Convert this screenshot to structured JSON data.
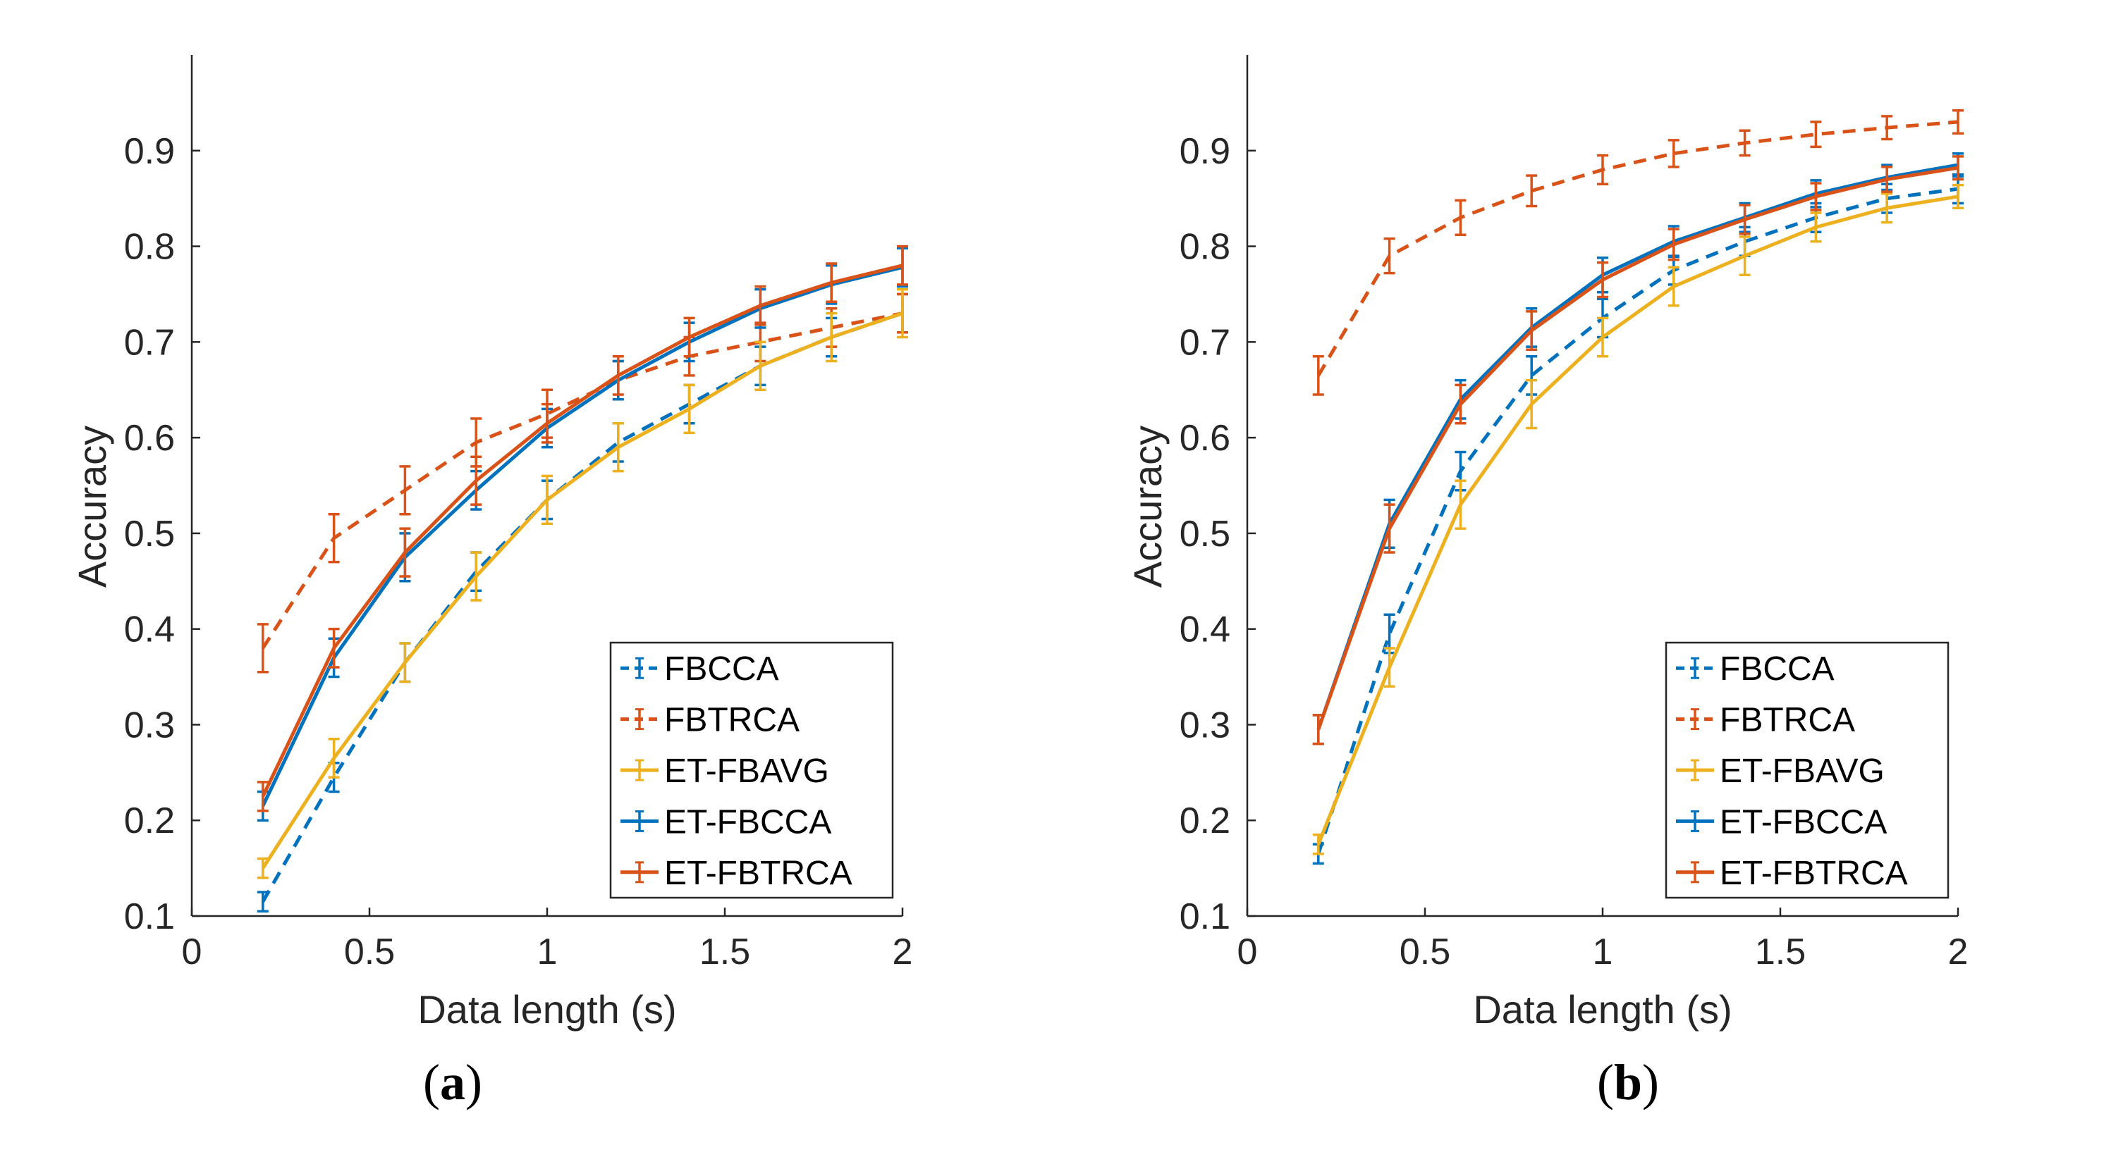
{
  "chart_data": [
    {
      "type": "line",
      "panel_label": "a",
      "xlabel": "Data length (s)",
      "ylabel": "Accuracy",
      "xlim": [
        0,
        2
      ],
      "ylim": [
        0.1,
        1.0
      ],
      "xticks": [
        0,
        0.5,
        1,
        1.5,
        2
      ],
      "xtick_labels": [
        "0",
        "0.5",
        "1",
        "1.5",
        "2"
      ],
      "yticks": [
        0.1,
        0.2,
        0.3,
        0.4,
        0.5,
        0.6,
        0.7,
        0.8,
        0.9
      ],
      "ytick_labels": [
        "0.1",
        "0.2",
        "0.3",
        "0.4",
        "0.5",
        "0.6",
        "0.7",
        "0.8",
        "0.9"
      ],
      "legend_position": "bottom-right",
      "x": [
        0.2,
        0.4,
        0.6,
        0.8,
        1.0,
        1.2,
        1.4,
        1.6,
        1.8,
        2.0
      ],
      "series": [
        {
          "name": "FBCCA",
          "color": "#0072BD",
          "style": "dashed",
          "values": [
            0.115,
            0.245,
            0.365,
            0.46,
            0.535,
            0.595,
            0.635,
            0.675,
            0.705,
            0.73
          ],
          "errors": [
            0.01,
            0.015,
            0.02,
            0.02,
            0.02,
            0.02,
            0.02,
            0.02,
            0.02,
            0.02
          ]
        },
        {
          "name": "FBTRCA",
          "color": "#D95319",
          "style": "dashed",
          "values": [
            0.38,
            0.495,
            0.545,
            0.595,
            0.625,
            0.66,
            0.685,
            0.7,
            0.715,
            0.73
          ],
          "errors": [
            0.025,
            0.025,
            0.025,
            0.025,
            0.025,
            0.02,
            0.02,
            0.02,
            0.02,
            0.02
          ]
        },
        {
          "name": "ET-FBAVG",
          "color": "#EDB120",
          "style": "solid",
          "values": [
            0.15,
            0.265,
            0.365,
            0.455,
            0.535,
            0.59,
            0.63,
            0.675,
            0.705,
            0.73
          ],
          "errors": [
            0.01,
            0.02,
            0.02,
            0.025,
            0.025,
            0.025,
            0.025,
            0.025,
            0.025,
            0.025
          ]
        },
        {
          "name": "ET-FBCCA",
          "color": "#0072BD",
          "style": "solid",
          "values": [
            0.215,
            0.37,
            0.475,
            0.545,
            0.61,
            0.66,
            0.7,
            0.735,
            0.76,
            0.778
          ],
          "errors": [
            0.015,
            0.02,
            0.025,
            0.02,
            0.02,
            0.02,
            0.02,
            0.02,
            0.02,
            0.02
          ]
        },
        {
          "name": "ET-FBTRCA",
          "color": "#D95319",
          "style": "solid",
          "values": [
            0.225,
            0.38,
            0.48,
            0.555,
            0.615,
            0.665,
            0.705,
            0.738,
            0.762,
            0.78
          ],
          "errors": [
            0.015,
            0.02,
            0.025,
            0.025,
            0.02,
            0.02,
            0.02,
            0.02,
            0.02,
            0.02
          ]
        }
      ]
    },
    {
      "type": "line",
      "panel_label": "b",
      "xlabel": "Data length (s)",
      "ylabel": "Accuracy",
      "xlim": [
        0,
        2
      ],
      "ylim": [
        0.1,
        1.0
      ],
      "xticks": [
        0,
        0.5,
        1,
        1.5,
        2
      ],
      "xtick_labels": [
        "0",
        "0.5",
        "1",
        "1.5",
        "2"
      ],
      "yticks": [
        0.1,
        0.2,
        0.3,
        0.4,
        0.5,
        0.6,
        0.7,
        0.8,
        0.9
      ],
      "ytick_labels": [
        "0.1",
        "0.2",
        "0.3",
        "0.4",
        "0.5",
        "0.6",
        "0.7",
        "0.8",
        "0.9"
      ],
      "legend_position": "bottom-right",
      "x": [
        0.2,
        0.4,
        0.6,
        0.8,
        1.0,
        1.2,
        1.4,
        1.6,
        1.8,
        2.0
      ],
      "series": [
        {
          "name": "FBCCA",
          "color": "#0072BD",
          "style": "dashed",
          "values": [
            0.165,
            0.395,
            0.565,
            0.665,
            0.725,
            0.775,
            0.805,
            0.83,
            0.85,
            0.86
          ],
          "errors": [
            0.01,
            0.02,
            0.02,
            0.02,
            0.02,
            0.015,
            0.015,
            0.015,
            0.015,
            0.015
          ]
        },
        {
          "name": "FBTRCA",
          "color": "#D95319",
          "style": "dashed",
          "values": [
            0.665,
            0.79,
            0.83,
            0.858,
            0.88,
            0.897,
            0.908,
            0.917,
            0.924,
            0.93
          ],
          "errors": [
            0.02,
            0.018,
            0.018,
            0.016,
            0.015,
            0.014,
            0.013,
            0.013,
            0.012,
            0.012
          ]
        },
        {
          "name": "ET-FBAVG",
          "color": "#EDB120",
          "style": "solid",
          "values": [
            0.175,
            0.36,
            0.53,
            0.635,
            0.705,
            0.758,
            0.79,
            0.82,
            0.84,
            0.852
          ],
          "errors": [
            0.01,
            0.02,
            0.025,
            0.025,
            0.02,
            0.02,
            0.02,
            0.015,
            0.015,
            0.012
          ]
        },
        {
          "name": "ET-FBCCA",
          "color": "#0072BD",
          "style": "solid",
          "values": [
            0.295,
            0.51,
            0.64,
            0.715,
            0.77,
            0.805,
            0.83,
            0.855,
            0.872,
            0.885
          ],
          "errors": [
            0.015,
            0.025,
            0.02,
            0.02,
            0.018,
            0.016,
            0.015,
            0.014,
            0.013,
            0.012
          ]
        },
        {
          "name": "ET-FBTRCA",
          "color": "#D95319",
          "style": "solid",
          "values": [
            0.295,
            0.505,
            0.635,
            0.712,
            0.765,
            0.802,
            0.828,
            0.852,
            0.87,
            0.882
          ],
          "errors": [
            0.015,
            0.025,
            0.02,
            0.02,
            0.018,
            0.016,
            0.015,
            0.014,
            0.013,
            0.012
          ]
        }
      ]
    }
  ]
}
